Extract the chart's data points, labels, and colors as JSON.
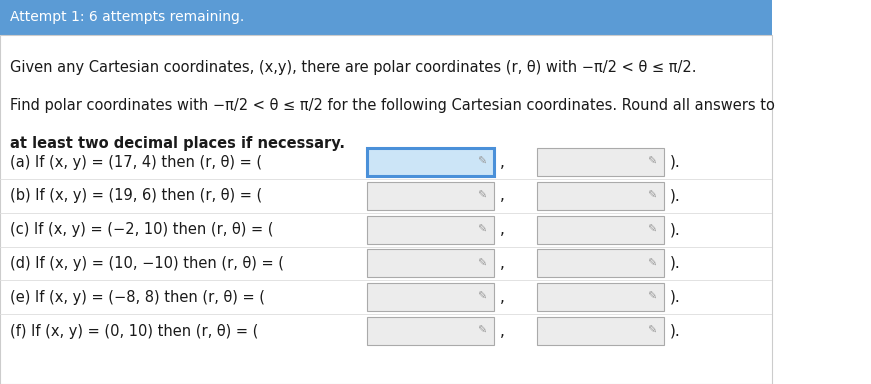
{
  "header_bg": "#5b9bd5",
  "header_text": "Attempt 1: 6 attempts remaining.",
  "header_text_color": "white",
  "header_fontsize": 10,
  "body_bg": "#ffffff",
  "rows": [
    {
      "label": "(a) If (x, y) = (17, 4) then (r, θ) = ("
    },
    {
      "label": "(b) If (x, y) = (19, 6) then (r, θ) = ("
    },
    {
      "label": "(c) If (x, y) = (−2, 10) then (r, θ) = ("
    },
    {
      "label": "(d) If (x, y) = (10, −10) then (r, θ) = ("
    },
    {
      "label": "(e) If (x, y) = (−8, 8) then (r, θ) = ("
    },
    {
      "label": "(f) If (x, y) = (0, 10) then (r, θ) = ("
    }
  ],
  "text_color": "#1a1a1a",
  "input_bg_active": "#cce5f7",
  "input_bg_normal": "#ececec",
  "border_color_active": "#4a90d9",
  "border_color_normal": "#aaaaaa",
  "active_row": 0,
  "row_divider_color": "#dddddd"
}
